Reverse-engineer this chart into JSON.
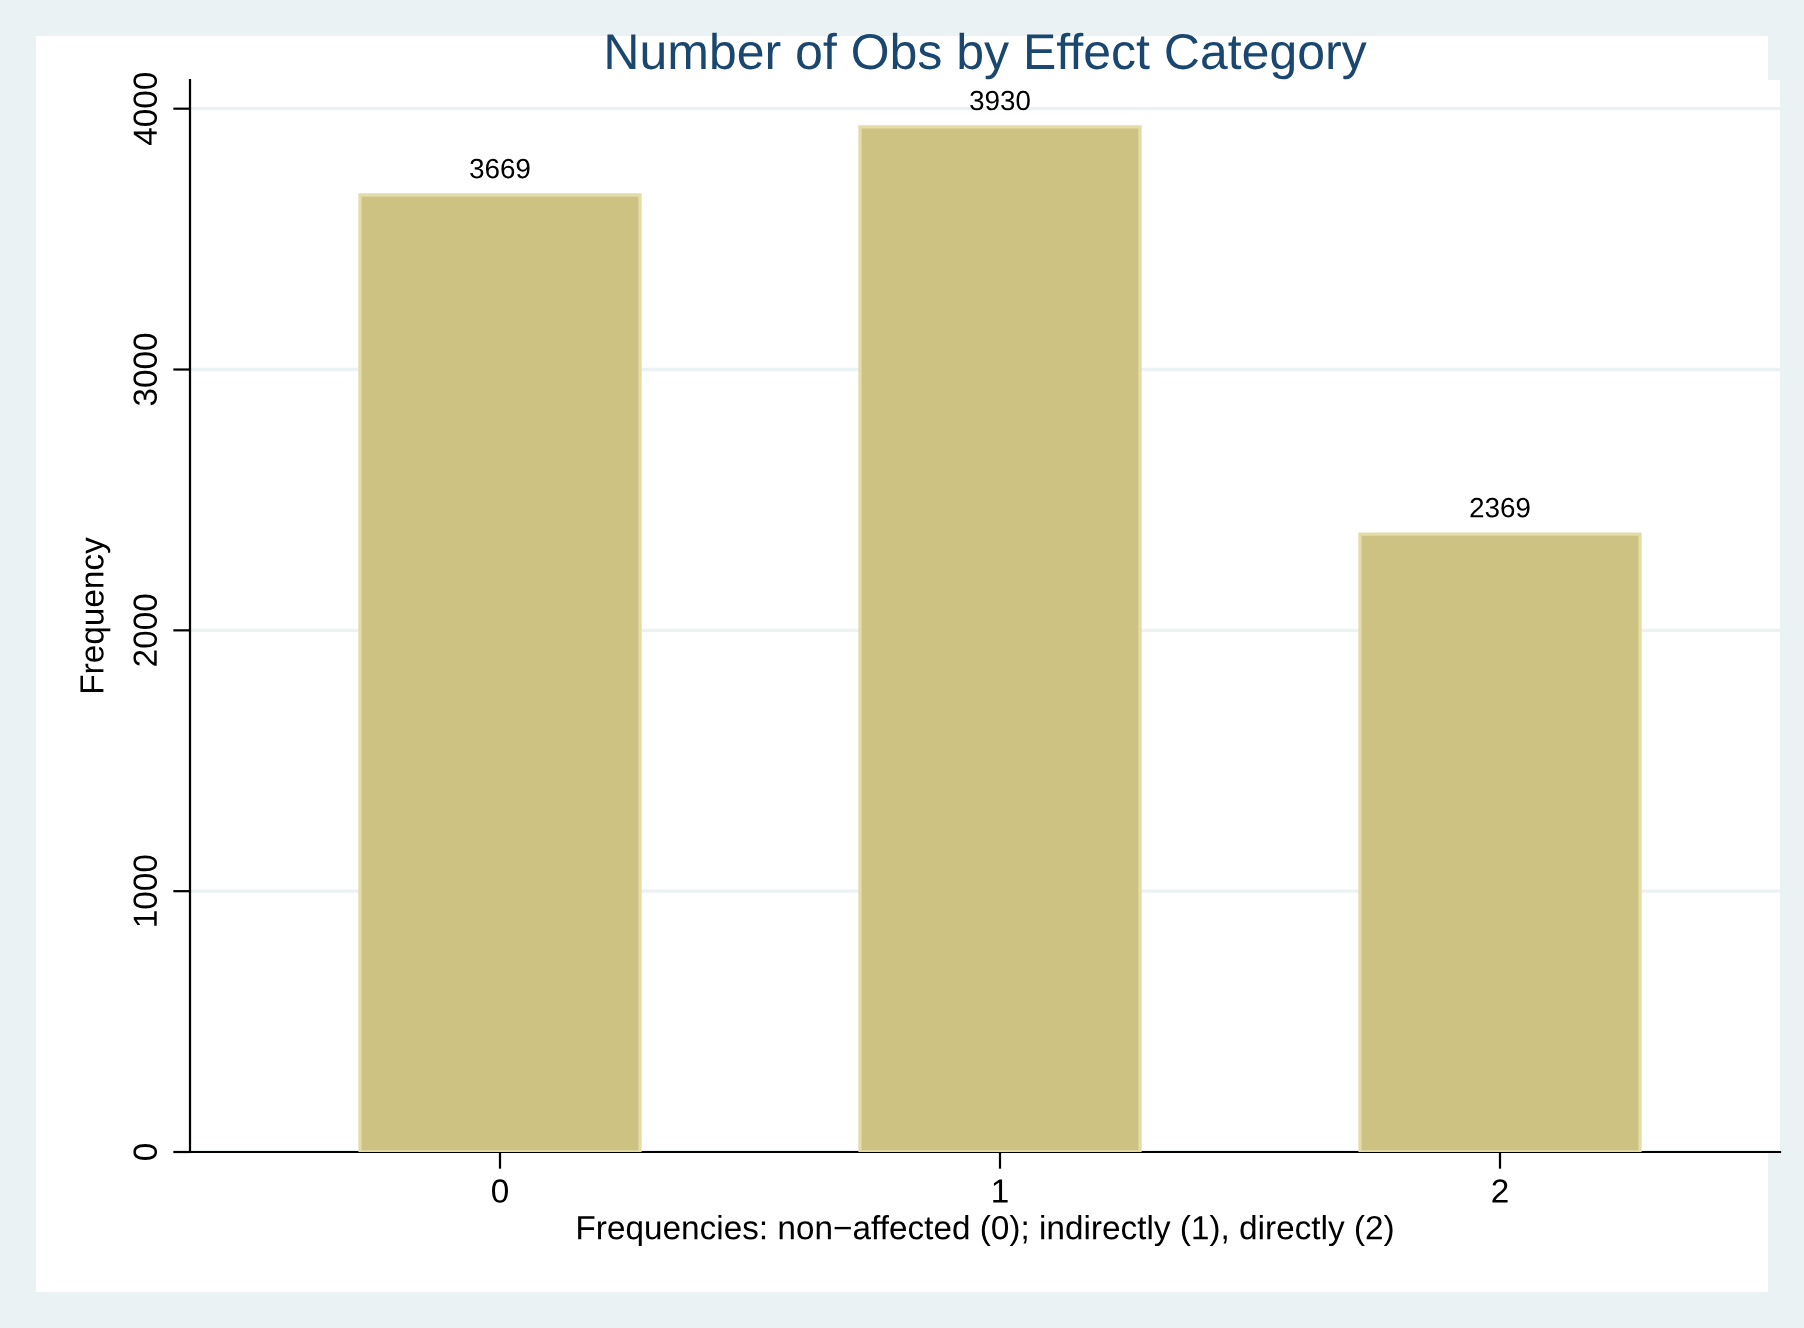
{
  "chart_data": {
    "type": "bar",
    "title": "Number of Obs by Effect Category",
    "xlabel": "Frequencies: non−affected (0); indirectly (1), directly (2)",
    "ylabel": "Frequency",
    "categories": [
      "0",
      "1",
      "2"
    ],
    "values": [
      3669,
      3930,
      2369
    ],
    "color": "#cdc281",
    "data_labels": true,
    "ylim": [
      0,
      4110
    ],
    "yticks": [
      0,
      1000,
      2000,
      3000,
      4000
    ],
    "grid": "y"
  }
}
